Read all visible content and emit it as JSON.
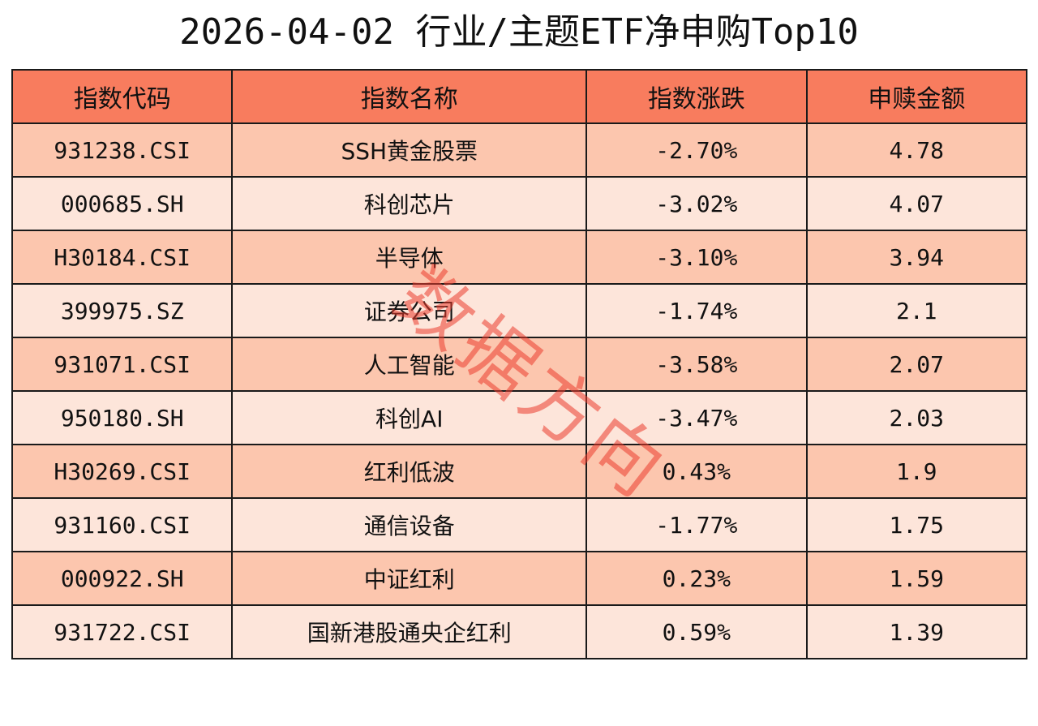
{
  "title": "2026-04-02 行业/主题ETF净申购Top10",
  "colors": {
    "header_bg": "#f87c5e",
    "row_odd_bg": "#fcc6ae",
    "row_even_bg": "#fde5da",
    "border": "#1a1a1a",
    "watermark": "#eb3c2d"
  },
  "table": {
    "headers": [
      "指数代码",
      "指数名称",
      "指数涨跌",
      "申赎金额"
    ],
    "rows": [
      [
        "931238.CSI",
        "SSH黄金股票",
        "-2.70%",
        "4.78"
      ],
      [
        "000685.SH",
        "科创芯片",
        "-3.02%",
        "4.07"
      ],
      [
        "H30184.CSI",
        "半导体",
        "-3.10%",
        "3.94"
      ],
      [
        "399975.SZ",
        "证券公司",
        "-1.74%",
        "2.1"
      ],
      [
        "931071.CSI",
        "人工智能",
        "-3.58%",
        "2.07"
      ],
      [
        "950180.SH",
        "科创AI",
        "-3.47%",
        "2.03"
      ],
      [
        "H30269.CSI",
        "红利低波",
        "0.43%",
        "1.9"
      ],
      [
        "931160.CSI",
        "通信设备",
        "-1.77%",
        "1.75"
      ],
      [
        "000922.SH",
        "中证红利",
        "0.23%",
        "1.59"
      ],
      [
        "931722.CSI",
        "国新港股通央企红利",
        "0.59%",
        "1.39"
      ]
    ]
  },
  "watermark": "数据方向"
}
